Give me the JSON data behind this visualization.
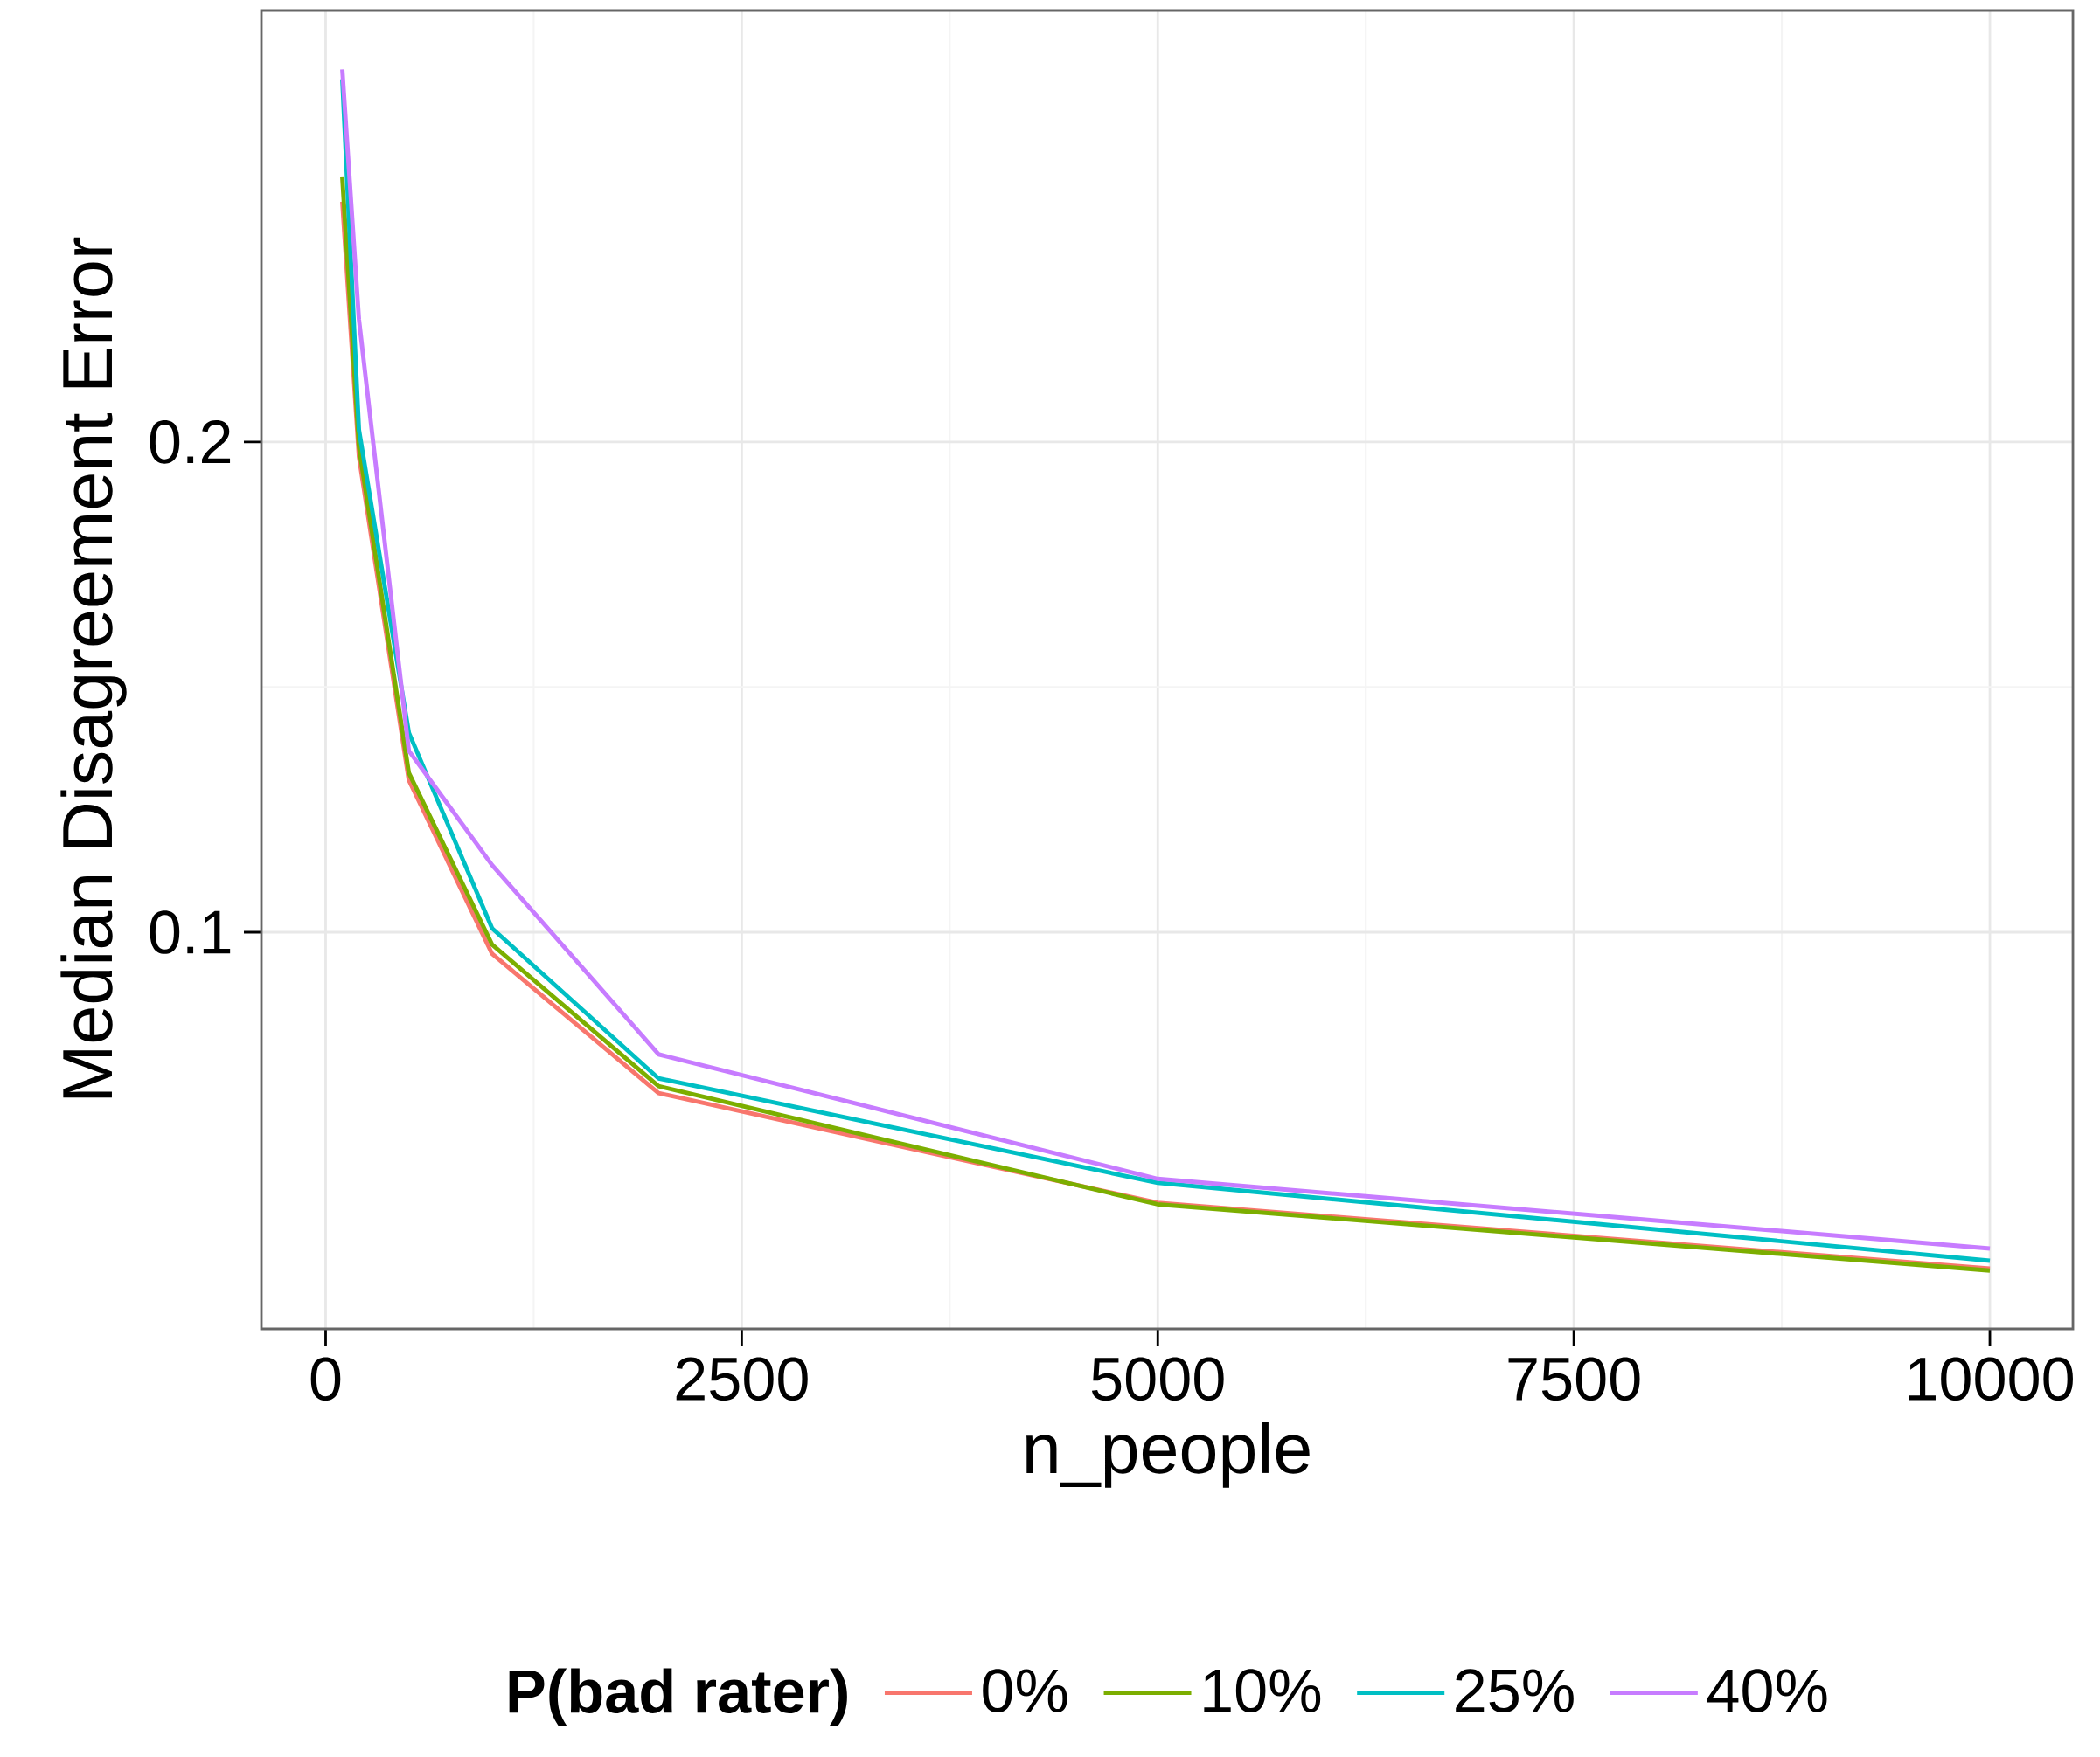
{
  "chart_data": {
    "type": "line",
    "xlabel": "n_people",
    "ylabel": "Median Disagreement Error",
    "legend_title": "P(bad rater)",
    "x": [
      100,
      200,
      500,
      1000,
      2000,
      5000,
      10000
    ],
    "series": [
      {
        "name": "0%",
        "color": "#f8766d",
        "values": [
          0.249,
          0.197,
          0.131,
          0.0956,
          0.0672,
          0.0448,
          0.0314
        ]
      },
      {
        "name": "10%",
        "color": "#7cae00",
        "values": [
          0.254,
          0.199,
          0.1325,
          0.0975,
          0.0686,
          0.0445,
          0.031
        ]
      },
      {
        "name": "25%",
        "color": "#00bfc4",
        "values": [
          0.274,
          0.2025,
          0.1407,
          0.1008,
          0.0702,
          0.0489,
          0.033
        ]
      },
      {
        "name": "40%",
        "color": "#c77cff",
        "values": [
          0.276,
          0.225,
          0.137,
          0.1137,
          0.0751,
          0.0497,
          0.0355
        ]
      }
    ],
    "xlim": [
      -386,
      10499
    ],
    "ylim": [
      0.0191,
      0.288
    ],
    "xticks": [
      0,
      2500,
      5000,
      7500,
      10000
    ],
    "yticks": [
      0.1,
      0.2
    ],
    "grid": true,
    "legend": "bottom",
    "marker": "none",
    "line_style": "solid"
  }
}
